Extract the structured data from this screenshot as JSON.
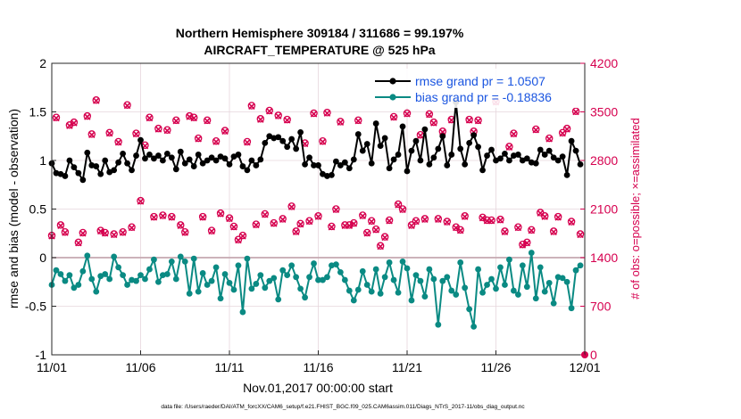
{
  "chart_data": {
    "type": "line",
    "title": "Northern Hemisphere 309184 / 311686 = 99.197%",
    "subtitle": "AIRCRAFT_TEMPERATURE @ 525 hPa",
    "xlabel": "Nov.01,2017 00:00:00 start",
    "ylabel": "rmse and bias (model - observation)",
    "ylabel_right": "# of obs: o=possible; ×=assimilated",
    "footnote": "data file: /Users/raeder/DAI/ATM_forcXX/CAM6_setup/f.e21.FHIST_BGC.f09_025.CAM6assim.011/Diags_NTrS_2017-11/obs_diag_output.nc",
    "x_ticks": [
      "11/01",
      "11/06",
      "11/11",
      "11/16",
      "11/21",
      "11/26",
      "12/01"
    ],
    "x_tick_days": [
      0,
      5,
      10,
      15,
      20,
      25,
      30
    ],
    "xlim": [
      0,
      30
    ],
    "ylim": [
      -1,
      2
    ],
    "y_ticks": [
      "-1",
      "-0.5",
      "0",
      "0.5",
      "1",
      "1.5",
      "2"
    ],
    "y_tick_values": [
      -1,
      -0.5,
      0,
      0.5,
      1,
      1.5,
      2
    ],
    "ylim_right": [
      0,
      4200
    ],
    "y_ticks_right": [
      "0",
      "700",
      "1400",
      "2100",
      "2800",
      "3500",
      "4200"
    ],
    "y_tick_values_right": [
      0,
      700,
      1400,
      2100,
      2800,
      3500,
      4200
    ],
    "x": [
      0,
      0.25,
      0.5,
      0.75,
      1,
      1.25,
      1.5,
      1.75,
      2,
      2.25,
      2.5,
      2.75,
      3,
      3.25,
      3.5,
      3.75,
      4,
      4.25,
      4.5,
      4.75,
      5,
      5.25,
      5.5,
      5.75,
      6,
      6.25,
      6.5,
      6.75,
      7,
      7.25,
      7.5,
      7.75,
      8,
      8.25,
      8.5,
      8.75,
      9,
      9.25,
      9.5,
      9.75,
      10,
      10.25,
      10.5,
      10.75,
      11,
      11.25,
      11.5,
      11.75,
      12,
      12.25,
      12.5,
      12.75,
      13,
      13.25,
      13.5,
      13.75,
      14,
      14.25,
      14.5,
      14.75,
      15,
      15.25,
      15.5,
      15.75,
      16,
      16.25,
      16.5,
      16.75,
      17,
      17.25,
      17.5,
      17.75,
      18,
      18.25,
      18.5,
      18.75,
      19,
      19.25,
      19.5,
      19.75,
      20,
      20.25,
      20.5,
      20.75,
      21,
      21.25,
      21.5,
      21.75,
      22,
      22.25,
      22.5,
      22.75,
      23,
      23.25,
      23.5,
      23.75,
      24,
      24.25,
      24.5,
      24.75,
      25,
      25.25,
      25.5,
      25.75,
      26,
      26.25,
      26.5,
      26.75,
      27,
      27.25,
      27.5,
      27.75,
      28,
      28.25,
      28.5,
      28.75,
      29,
      29.25,
      29.5,
      29.75
    ],
    "series": [
      {
        "name": "rmse",
        "legend": "rmse grand pr = 1.0507",
        "color": "#000000",
        "values": [
          0.97,
          0.87,
          0.86,
          0.84,
          1.0,
          0.93,
          0.87,
          0.8,
          1.08,
          0.95,
          0.94,
          0.86,
          1.0,
          0.88,
          0.9,
          0.98,
          1.07,
          0.97,
          0.9,
          1.05,
          1.21,
          1.02,
          1.06,
          1.02,
          1.05,
          1.0,
          1.07,
          1.03,
          0.91,
          1.09,
          0.97,
          1.01,
          0.94,
          1.06,
          0.97,
          1.0,
          1.03,
          1.0,
          1.04,
          1.02,
          0.96,
          1.04,
          1.06,
          0.94,
          0.9,
          1.0,
          0.95,
          1.01,
          1.18,
          1.25,
          1.23,
          1.24,
          1.2,
          1.14,
          1.22,
          1.12,
          1.29,
          0.96,
          1.03,
          0.95,
          0.95,
          0.86,
          0.84,
          0.85,
          0.99,
          0.95,
          0.98,
          0.92,
          1.01,
          1.27,
          1.1,
          1.17,
          0.97,
          1.38,
          1.15,
          1.23,
          0.92,
          1.01,
          1.06,
          1.35,
          0.89,
          1.1,
          1.2,
          1.0,
          1.32,
          0.96,
          1.03,
          1.12,
          1.25,
          0.95,
          1.06,
          1.6,
          1.12,
          0.96,
          1.18,
          1.26,
          1.14,
          0.9,
          1.05,
          1.11,
          1.0,
          1.02,
          1.07,
          1.0,
          1.05,
          1.06,
          1.0,
          1.02,
          0.98,
          0.97,
          1.11,
          1.06,
          1.1,
          1.03,
          1.0,
          1.04,
          0.85,
          1.2,
          1.1,
          0.96
        ]
      },
      {
        "name": "bias",
        "legend": "bias grand pr = -0.18836",
        "color": "#0a8a83",
        "values": [
          -0.28,
          -0.13,
          -0.17,
          -0.24,
          -0.18,
          -0.31,
          -0.28,
          -0.14,
          0.02,
          -0.22,
          -0.35,
          -0.19,
          -0.17,
          -0.22,
          0.01,
          -0.1,
          -0.18,
          -0.28,
          -0.23,
          -0.24,
          -0.18,
          -0.22,
          -0.12,
          -0.02,
          -0.25,
          -0.18,
          -0.17,
          -0.04,
          -0.22,
          0.01,
          -0.04,
          -0.37,
          -0.01,
          -0.35,
          -0.16,
          -0.28,
          -0.24,
          -0.1,
          -0.42,
          -0.17,
          -0.26,
          -0.33,
          -0.08,
          -0.56,
          -0.01,
          -0.32,
          -0.27,
          -0.18,
          -0.31,
          -0.24,
          -0.21,
          -0.43,
          -0.13,
          -0.18,
          -0.08,
          -0.2,
          -0.32,
          -0.41,
          -0.2,
          -0.06,
          -0.23,
          -0.23,
          -0.2,
          -0.08,
          -0.07,
          -0.15,
          -0.23,
          -0.34,
          -0.44,
          -0.33,
          -0.14,
          -0.28,
          -0.35,
          -0.12,
          -0.37,
          -0.2,
          -0.05,
          -0.23,
          -0.36,
          -0.04,
          -0.11,
          -0.44,
          -0.18,
          -0.24,
          -0.4,
          -0.12,
          -0.22,
          -0.69,
          -0.24,
          -0.2,
          -0.34,
          -0.38,
          -0.05,
          -0.31,
          -0.53,
          -0.71,
          -0.12,
          -0.36,
          -0.28,
          -0.22,
          -0.32,
          -0.1,
          -0.28,
          -0.02,
          -0.34,
          -0.38,
          -0.08,
          -0.3,
          0.05,
          -0.42,
          -0.1,
          -0.35,
          -0.26,
          -0.47,
          -0.2,
          -0.21,
          -0.25,
          -0.52,
          -0.13,
          -0.08
        ]
      },
      {
        "name": "possible",
        "marker": "o",
        "axis": "right",
        "color": "#d6004f",
        "values": [
          1720,
          3420,
          1870,
          1770,
          3310,
          3350,
          1620,
          1760,
          3440,
          3180,
          3670,
          1790,
          1760,
          3200,
          1740,
          3070,
          1770,
          3600,
          1840,
          3190,
          2220,
          3020,
          3420,
          1990,
          3260,
          2010,
          3240,
          1990,
          3380,
          1870,
          1770,
          3440,
          3420,
          3120,
          1990,
          3380,
          1790,
          3080,
          2040,
          3230,
          1970,
          1850,
          1660,
          1720,
          3070,
          3590,
          1880,
          3400,
          2030,
          3520,
          1900,
          3450,
          1960,
          3390,
          2140,
          1780,
          1890,
          3050,
          1930,
          3480,
          2000,
          3080,
          3490,
          1850,
          2100,
          3360,
          1870,
          1870,
          1900,
          3380,
          2010,
          1760,
          1930,
          1810,
          1570,
          1700,
          1940,
          3430,
          2170,
          2100,
          3480,
          1870,
          1930,
          3170,
          1960,
          3470,
          3350,
          1960,
          3220,
          1920,
          3390,
          1840,
          1800,
          2000,
          3390,
          3220,
          3380,
          1980,
          1940,
          1940,
          3650,
          1950,
          1780,
          3000,
          3190,
          1840,
          1590,
          1620,
          1800,
          3250,
          2050,
          2000,
          3120,
          1780,
          1990,
          3200,
          3260,
          1920,
          3510,
          1740
        ]
      },
      {
        "name": "assimilated",
        "marker": "x",
        "axis": "right",
        "color": "#d6004f",
        "values": [
          1710,
          3410,
          1860,
          1760,
          3300,
          3340,
          1610,
          1750,
          3430,
          3170,
          3660,
          1780,
          1750,
          3190,
          1730,
          3060,
          1760,
          3590,
          1830,
          3180,
          2210,
          3010,
          3410,
          1980,
          3250,
          2000,
          3230,
          1980,
          3370,
          1860,
          1760,
          3430,
          3410,
          3110,
          1980,
          3370,
          1780,
          3070,
          2030,
          3220,
          1960,
          1840,
          1650,
          1710,
          3060,
          3580,
          1870,
          3390,
          2020,
          3510,
          1890,
          3440,
          1950,
          3380,
          2130,
          1770,
          1880,
          3040,
          1920,
          3470,
          1990,
          3070,
          3480,
          1840,
          2090,
          3350,
          1860,
          1860,
          1890,
          3370,
          2000,
          1750,
          1920,
          1800,
          1560,
          1690,
          1930,
          3420,
          2160,
          2090,
          3470,
          1860,
          1920,
          3160,
          1950,
          3460,
          3340,
          1950,
          3210,
          1910,
          3380,
          1830,
          1790,
          1990,
          3380,
          3210,
          3370,
          1970,
          1930,
          1930,
          3640,
          1940,
          1770,
          2990,
          3180,
          1830,
          1580,
          1610,
          1790,
          3240,
          2040,
          1990,
          3110,
          1770,
          1980,
          3190,
          3250,
          1910,
          3500,
          1730
        ]
      }
    ]
  }
}
